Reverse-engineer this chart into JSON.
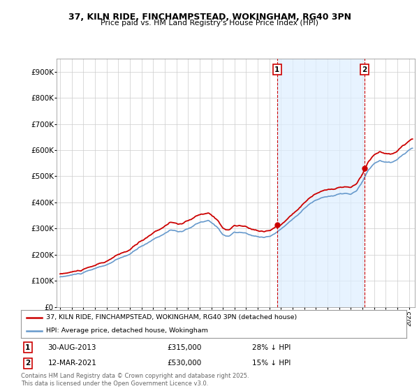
{
  "title_line1": "37, KILN RIDE, FINCHAMPSTEAD, WOKINGHAM, RG40 3PN",
  "title_line2": "Price paid vs. HM Land Registry's House Price Index (HPI)",
  "background_color": "#ffffff",
  "plot_background": "#ffffff",
  "grid_color": "#cccccc",
  "hpi_color": "#6699cc",
  "hpi_fill_color": "#ddeeff",
  "price_color": "#cc0000",
  "marker1_year": 2013.66,
  "marker2_year": 2021.19,
  "marker1_price": 315000,
  "marker2_price": 530000,
  "annotation1": {
    "label": "1",
    "date": "30-AUG-2013",
    "price": "£315,000",
    "note": "28% ↓ HPI"
  },
  "annotation2": {
    "label": "2",
    "date": "12-MAR-2021",
    "price": "£530,000",
    "note": "15% ↓ HPI"
  },
  "legend_line1": "37, KILN RIDE, FINCHAMPSTEAD, WOKINGHAM, RG40 3PN (detached house)",
  "legend_line2": "HPI: Average price, detached house, Wokingham",
  "footer": "Contains HM Land Registry data © Crown copyright and database right 2025.\nThis data is licensed under the Open Government Licence v3.0.",
  "ylim_max": 950000,
  "xlim_start": 1994.7,
  "xlim_end": 2025.5
}
